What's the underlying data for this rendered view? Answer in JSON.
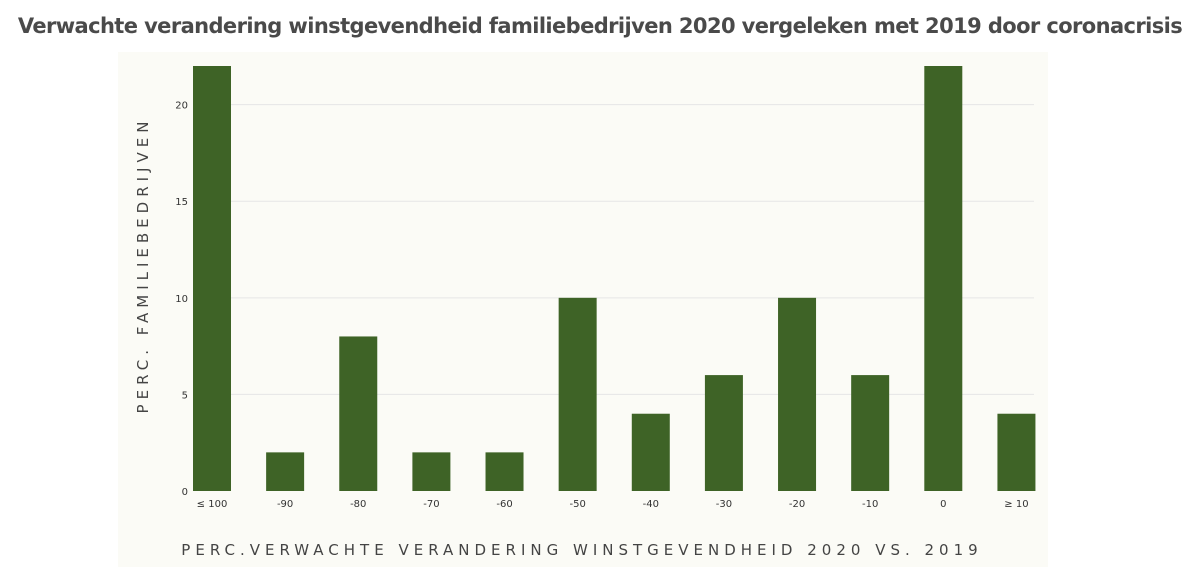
{
  "chart_data": {
    "type": "bar",
    "title": "Verwachte verandering winstgevendheid familiebedrijven 2020 vergeleken met 2019 door coronacrisis",
    "xlabel": "PERC.VERWACHTE VERANDERING WINSTGEVENDHEID 2020 VS. 2019",
    "ylabel": "PERC. FAMILIEBEDRIJVEN",
    "categories": [
      "≤ 100",
      "-90",
      "-80",
      "-70",
      "-60",
      "-50",
      "-40",
      "-30",
      "-20",
      "-10",
      "0",
      "≥ 10"
    ],
    "values": [
      22,
      2,
      8,
      2,
      2,
      10,
      4,
      6,
      10,
      6,
      22,
      4
    ],
    "yticks": [
      0,
      5,
      10,
      15,
      20
    ],
    "ylim": [
      0,
      22
    ],
    "grid": true,
    "legend": "none",
    "bar_color": "#3e6326",
    "grid_color": "#e6e6e6"
  }
}
